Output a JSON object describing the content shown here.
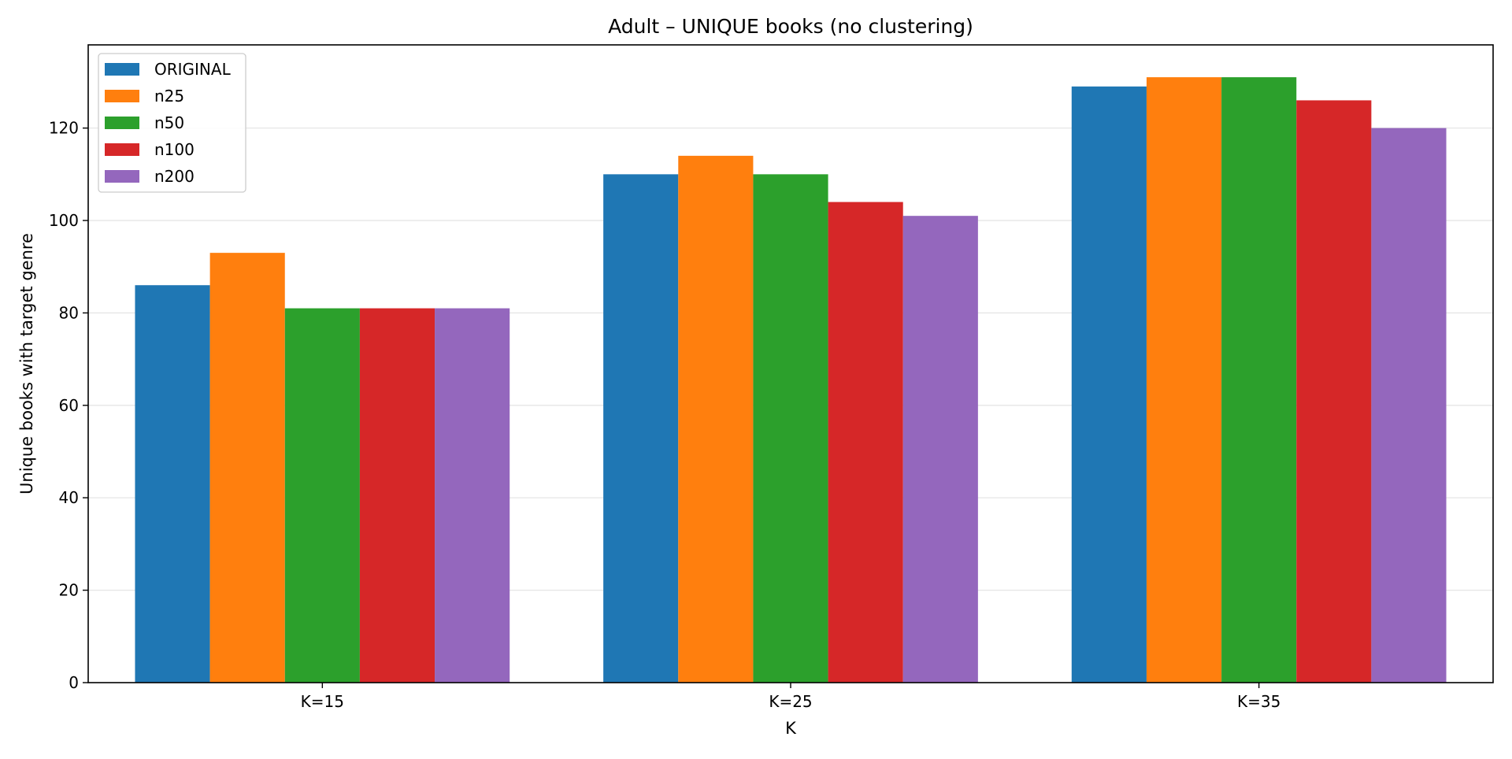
{
  "chart_data": {
    "type": "bar",
    "title": "Adult – UNIQUE books (no clustering)",
    "xlabel": "K",
    "ylabel": "Unique books with target genre",
    "categories": [
      "K=15",
      "K=25",
      "K=35"
    ],
    "ylim": [
      0,
      138
    ],
    "yticks": [
      0,
      20,
      40,
      60,
      80,
      100,
      120
    ],
    "grid": "horizontal",
    "legend_position": "top-left",
    "series": [
      {
        "name": "ORIGINAL",
        "color": "#1f77b4",
        "values": [
          86,
          110,
          129
        ]
      },
      {
        "name": "n25",
        "color": "#ff7f0e",
        "values": [
          93,
          114,
          131
        ]
      },
      {
        "name": "n50",
        "color": "#2ca02c",
        "values": [
          81,
          110,
          131
        ]
      },
      {
        "name": "n100",
        "color": "#d62728",
        "values": [
          81,
          104,
          126
        ]
      },
      {
        "name": "n200",
        "color": "#9467bd",
        "values": [
          81,
          101,
          120
        ]
      }
    ]
  }
}
